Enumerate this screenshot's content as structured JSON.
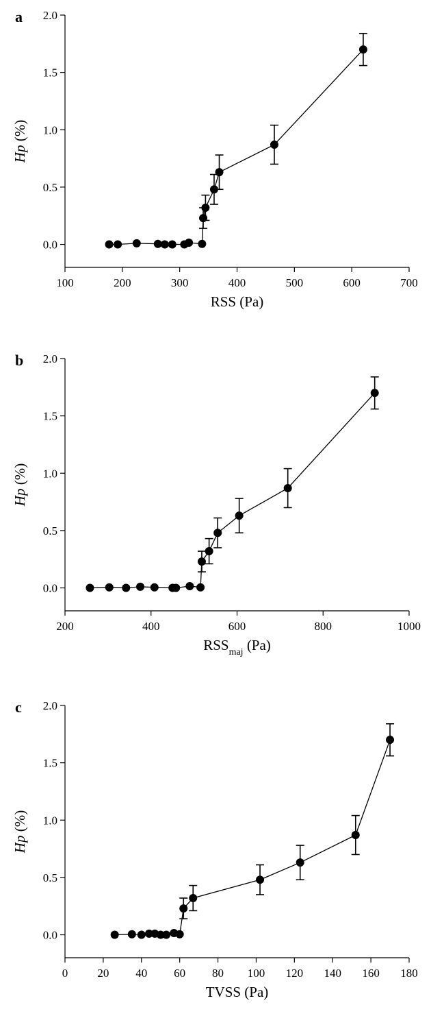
{
  "chart_data": [
    {
      "type": "line",
      "panel": "a",
      "xlabel": "RSS (Pa)",
      "ylabel": "Hp (%)",
      "xlim": [
        100,
        700
      ],
      "ylim": [
        -0.2,
        2.0
      ],
      "xticks": [
        100,
        200,
        300,
        400,
        500,
        600,
        700
      ],
      "yticks": [
        0.0,
        0.5,
        1.0,
        1.5,
        2.0
      ],
      "x": [
        177,
        192,
        225,
        262,
        274,
        287,
        308,
        316,
        339,
        341,
        345,
        360,
        369,
        465,
        620
      ],
      "y": [
        0.0,
        0.0,
        0.01,
        0.005,
        0.0,
        0.0,
        0.0,
        0.015,
        0.005,
        0.23,
        0.32,
        0.48,
        0.63,
        0.87,
        1.7
      ],
      "err": [
        0,
        0,
        0,
        0,
        0,
        0,
        0,
        0,
        0,
        0.09,
        0.11,
        0.13,
        0.15,
        0.17,
        0.14
      ]
    },
    {
      "type": "line",
      "panel": "b",
      "xlabel_main": "RSS",
      "xlabel_sub": "maj",
      "xlabel_unit": " (Pa)",
      "ylabel": "Hp (%)",
      "xlim": [
        200,
        1000
      ],
      "ylim": [
        -0.2,
        2.0
      ],
      "xticks": [
        200,
        400,
        600,
        800,
        1000
      ],
      "yticks": [
        0.0,
        0.5,
        1.0,
        1.5,
        2.0
      ],
      "x": [
        258,
        303,
        342,
        375,
        408,
        450,
        458,
        490,
        515,
        518,
        535,
        555,
        605,
        718,
        920
      ],
      "y": [
        0.0,
        0.005,
        0.0,
        0.01,
        0.005,
        0.0,
        0.0,
        0.015,
        0.005,
        0.23,
        0.32,
        0.48,
        0.63,
        0.87,
        1.7
      ],
      "err": [
        0,
        0,
        0,
        0,
        0,
        0,
        0,
        0,
        0,
        0.09,
        0.11,
        0.13,
        0.15,
        0.17,
        0.14
      ]
    },
    {
      "type": "line",
      "panel": "c",
      "xlabel": "TVSS (Pa)",
      "ylabel": "Hp (%)",
      "xlim": [
        0,
        180
      ],
      "ylim": [
        -0.2,
        2.0
      ],
      "xticks": [
        0,
        20,
        40,
        60,
        80,
        100,
        120,
        140,
        160,
        180
      ],
      "yticks": [
        0.0,
        0.5,
        1.0,
        1.5,
        2.0
      ],
      "x": [
        26,
        35,
        40,
        44,
        47,
        50,
        53,
        57,
        60,
        62,
        67,
        102,
        123,
        152,
        170
      ],
      "y": [
        0.0,
        0.005,
        0.0,
        0.01,
        0.01,
        0.0,
        0.0,
        0.015,
        0.005,
        0.23,
        0.32,
        0.48,
        0.63,
        0.87,
        1.7
      ],
      "err": [
        0,
        0,
        0,
        0,
        0,
        0,
        0,
        0,
        0,
        0.09,
        0.11,
        0.13,
        0.15,
        0.17,
        0.14
      ]
    }
  ]
}
